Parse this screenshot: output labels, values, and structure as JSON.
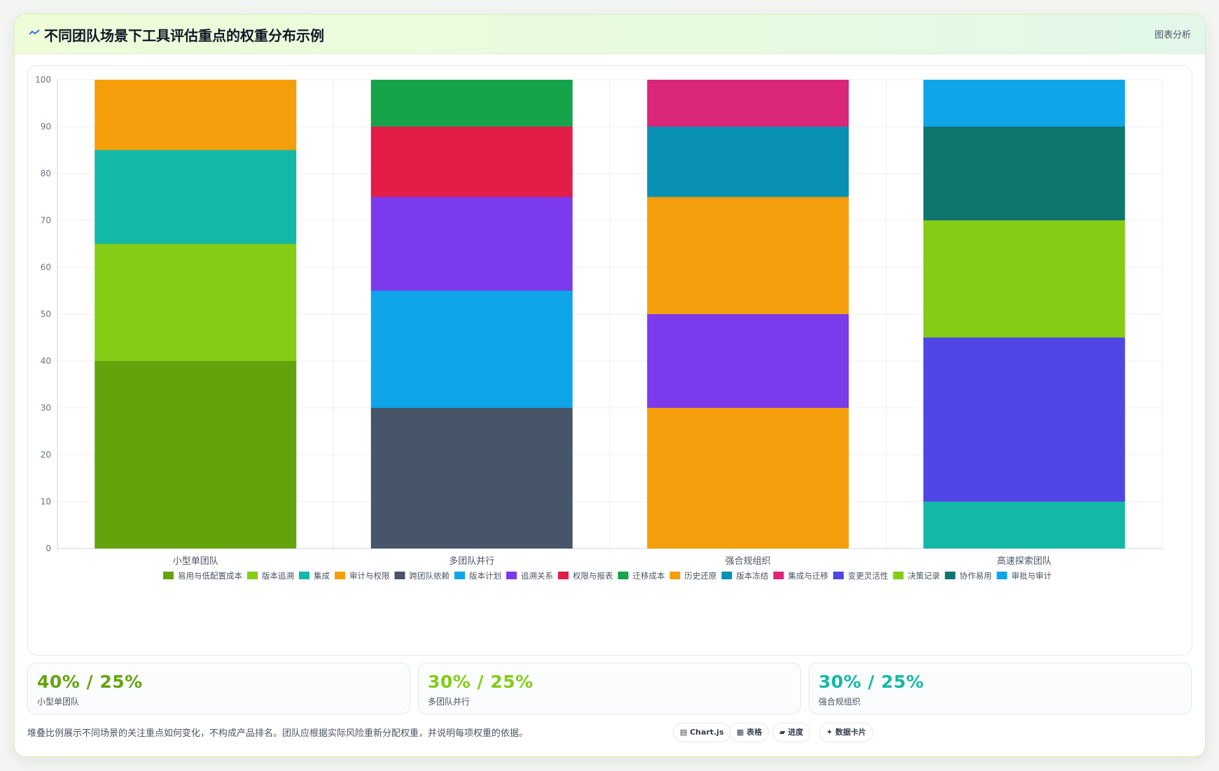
{
  "header": {
    "title": "不同团队场景下工具评估重点的权重分布示例",
    "tag": "图表分析",
    "icon": "trend-line-icon"
  },
  "chart_data": {
    "type": "bar",
    "stacked": true,
    "categories": [
      "小型单团队",
      "多团队并行",
      "强合规组织",
      "高速探索团队"
    ],
    "ylim": [
      0,
      100
    ],
    "yticks": [
      0,
      10,
      20,
      30,
      40,
      50,
      60,
      70,
      80,
      90,
      100
    ],
    "grid": true,
    "legend_position": "bottom",
    "series": [
      {
        "name": "易用与低配置成本",
        "color": "#65a30d",
        "values": [
          40,
          0,
          0,
          0
        ]
      },
      {
        "name": "版本追溯",
        "color": "#84cc16",
        "values": [
          25,
          0,
          0,
          0
        ]
      },
      {
        "name": "集成",
        "color": "#14b8a6",
        "values": [
          20,
          0,
          0,
          0
        ]
      },
      {
        "name": "审计与权限",
        "color": "#f59e0b",
        "values": [
          15,
          0,
          0,
          0
        ]
      },
      {
        "name": "跨团队依赖",
        "color": "#475569",
        "values": [
          0,
          30,
          0,
          0
        ]
      },
      {
        "name": "版本计划",
        "color": "#0ea5e9",
        "values": [
          0,
          25,
          0,
          0
        ]
      },
      {
        "name": "追溯关系",
        "color": "#7c3aed",
        "values": [
          0,
          20,
          0,
          0
        ]
      },
      {
        "name": "权限与报表",
        "color": "#e11d48",
        "values": [
          0,
          15,
          0,
          0
        ]
      },
      {
        "name": "迁移成本",
        "color": "#16a34a",
        "values": [
          0,
          10,
          0,
          0
        ]
      },
      {
        "name": "审计与权限",
        "color": "#f59e0b",
        "values": [
          0,
          0,
          30,
          0
        ],
        "legend": false
      },
      {
        "name": "追溯关系",
        "color": "#7c3aed",
        "values": [
          0,
          0,
          20,
          0
        ],
        "legend": false
      },
      {
        "name": "历史还原",
        "color": "#f59e0b",
        "values": [
          0,
          0,
          25,
          0
        ]
      },
      {
        "name": "版本冻结",
        "color": "#0891b2",
        "values": [
          0,
          0,
          15,
          0
        ]
      },
      {
        "name": "集成与迁移",
        "color": "#db2777",
        "values": [
          0,
          0,
          10,
          0
        ]
      },
      {
        "name": "集成",
        "color": "#14b8a6",
        "values": [
          0,
          0,
          0,
          10
        ],
        "legend": false
      },
      {
        "name": "变更灵活性",
        "color": "#4f46e5",
        "values": [
          0,
          0,
          0,
          35
        ]
      },
      {
        "name": "决策记录",
        "color": "#84cc16",
        "values": [
          0,
          0,
          0,
          25
        ]
      },
      {
        "name": "协作易用",
        "color": "#0f766e",
        "values": [
          0,
          0,
          0,
          20
        ]
      },
      {
        "name": "审批与审计",
        "color": "#0ea5e9",
        "values": [
          0,
          0,
          0,
          10
        ]
      }
    ]
  },
  "stats": [
    {
      "value": "40% / 25%",
      "label": "小型单团队",
      "color": "#65a30d"
    },
    {
      "value": "30% / 25%",
      "label": "多团队并行",
      "color": "#84cc16"
    },
    {
      "value": "30% / 25%",
      "label": "强合规组织",
      "color": "#14b8a6"
    }
  ],
  "footer": {
    "note": "堆叠比例展示不同场景的关注重点如何变化，不构成产品排名。团队应根据实际风险重新分配权重，并说明每项权重的依据。",
    "pills": [
      {
        "icon": "chart-icon",
        "label": "Chart.js"
      },
      {
        "icon": "table-icon",
        "label": "表格"
      },
      {
        "icon": "progress-icon",
        "label": "进度"
      },
      {
        "icon": "sparkle-icon",
        "label": "数据卡片"
      }
    ]
  }
}
